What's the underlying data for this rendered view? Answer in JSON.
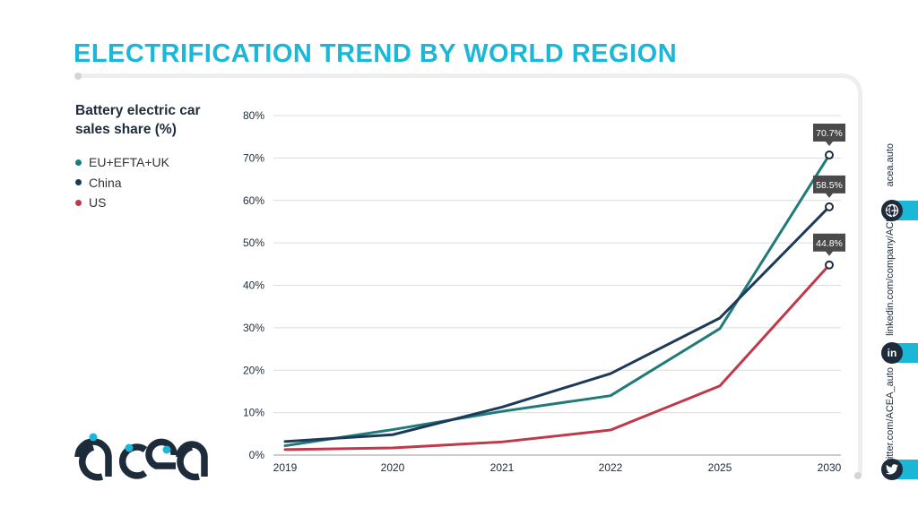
{
  "header": {
    "title": "ELECTRIFICATION TREND BY WORLD REGION"
  },
  "legend": {
    "title": "Battery electric car sales share (%)",
    "items": [
      {
        "label": "EU+EFTA+UK",
        "color": "#1e7b79"
      },
      {
        "label": "China",
        "color": "#1d3a5a"
      },
      {
        "label": "US",
        "color": "#c0394b"
      }
    ]
  },
  "brand": {
    "logo_text": "acea",
    "accent": "#1bb7d8",
    "dark": "#1d2b3a"
  },
  "social": {
    "website": "acea.auto",
    "linkedin": "linkedin.com/company/ACEA/",
    "twitter": "twitter.com/ACEA_auto",
    "icons": [
      "globe-icon",
      "linkedin-icon",
      "twitter-icon"
    ]
  },
  "chart_data": {
    "type": "line",
    "categories": [
      "2019",
      "2020",
      "2021",
      "2022",
      "2025",
      "2030"
    ],
    "ylim": [
      0,
      80
    ],
    "yticks": [
      "0%",
      "10%",
      "20%",
      "30%",
      "40%",
      "50%",
      "60%",
      "70%",
      "80%"
    ],
    "grid": true,
    "series": [
      {
        "name": "EU+EFTA+UK",
        "color": "#1e7b79",
        "values": [
          2.2,
          6.0,
          10.3,
          14.0,
          29.8,
          70.7
        ]
      },
      {
        "name": "China",
        "color": "#1d3a5a",
        "values": [
          3.2,
          4.8,
          11.3,
          19.2,
          32.3,
          58.5
        ]
      },
      {
        "name": "US",
        "color": "#c0394b",
        "values": [
          1.3,
          1.7,
          3.1,
          5.9,
          16.3,
          44.8
        ]
      }
    ],
    "end_labels": [
      "70.7%",
      "58.5%",
      "44.8%"
    ]
  }
}
